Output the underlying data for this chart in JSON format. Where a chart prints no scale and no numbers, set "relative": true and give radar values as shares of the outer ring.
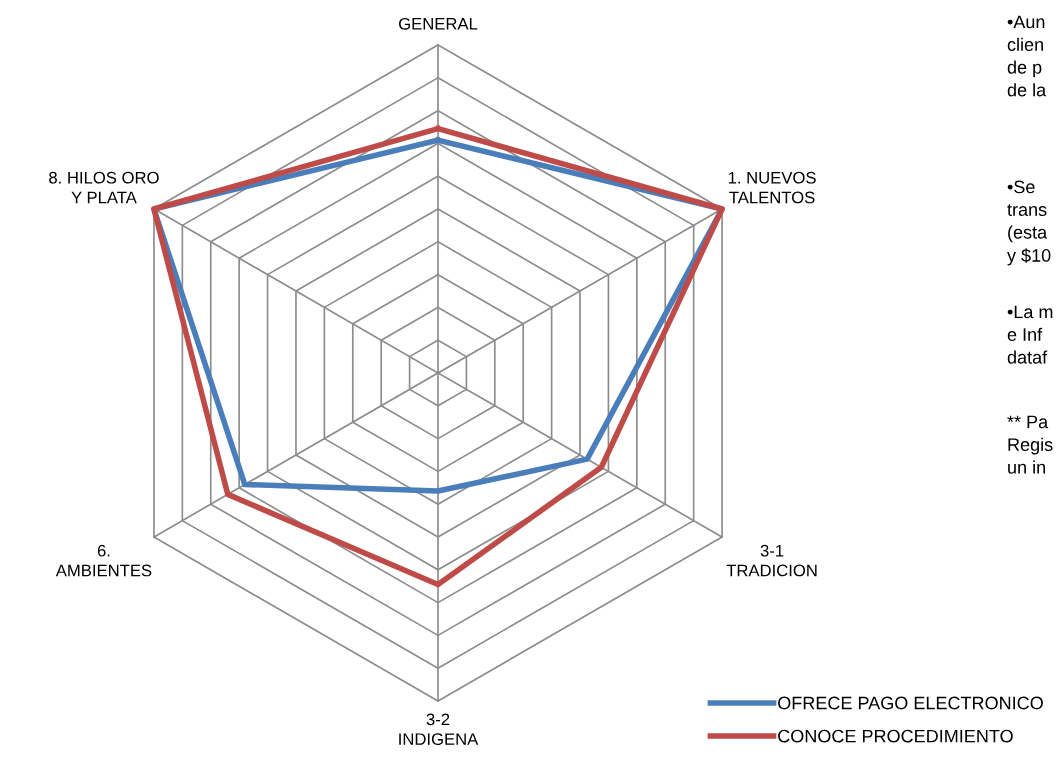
{
  "chart_data": {
    "type": "radar",
    "relative": true,
    "grid": true,
    "legend": "bottom right",
    "marker": "none",
    "line_style": "solid",
    "categories": [
      "GENERAL",
      "1. NUEVOS\nTALENTOS",
      "3-1\nTRADICION",
      "3-2\nINDIGENA",
      "6.\nAMBIENTES",
      "8. HILOS ORO\nY PLATA"
    ],
    "series": [
      {
        "name": "OFRECE PAGO ELECTRONICO",
        "color": "#4a7ebb",
        "values": [
          0.71,
          1,
          0.525,
          0.36,
          0.68,
          1
        ]
      },
      {
        "name": "CONOCE PROCEDIMIENTO",
        "color": "#be4b48",
        "values": [
          0.745,
          1,
          0.575,
          0.645,
          0.74,
          1
        ]
      }
    ],
    "annotations": [
      "•Aun\nclien\nde p\nde la",
      "•Se\ntrans\n(esta\ny $10",
      "•La m\ne Inf\ndataf",
      "** Pa\nRegis\nun in"
    ]
  }
}
